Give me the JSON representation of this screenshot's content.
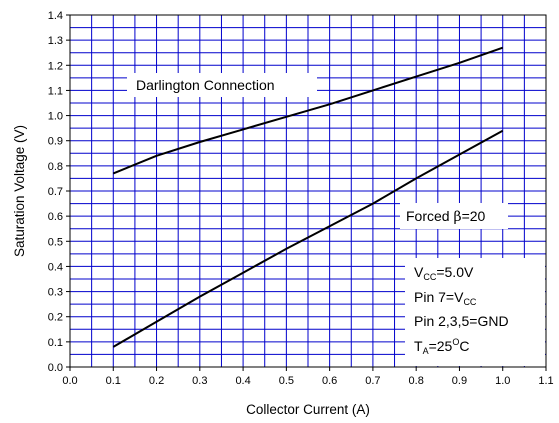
{
  "chart_data": {
    "type": "line",
    "xlabel": "Collector Current (A)",
    "ylabel": "Saturation Voltage (V)",
    "xlim": [
      0.0,
      1.1
    ],
    "ylim": [
      0.0,
      1.4
    ],
    "x_ticks": [
      "0.0",
      "0.1",
      "0.2",
      "0.3",
      "0.4",
      "0.5",
      "0.6",
      "0.7",
      "0.8",
      "0.9",
      "1.0",
      "1.1"
    ],
    "y_ticks": [
      "0.0",
      "0.1",
      "0.2",
      "0.3",
      "0.4",
      "0.5",
      "0.6",
      "0.7",
      "0.8",
      "0.9",
      "1.0",
      "1.1",
      "1.2",
      "1.3",
      "1.4"
    ],
    "grid": true,
    "series": [
      {
        "name": "Darlington Connection",
        "x": [
          0.1,
          0.2,
          0.3,
          0.4,
          0.5,
          0.6,
          0.7,
          0.8,
          0.9,
          1.0
        ],
        "y": [
          0.77,
          0.84,
          0.895,
          0.945,
          0.995,
          1.045,
          1.1,
          1.155,
          1.21,
          1.27
        ]
      },
      {
        "name": "Forced β=20",
        "x": [
          0.1,
          0.2,
          0.3,
          0.4,
          0.5,
          0.6,
          0.7,
          0.8,
          0.9,
          1.0
        ],
        "y": [
          0.08,
          0.18,
          0.28,
          0.375,
          0.47,
          0.56,
          0.65,
          0.75,
          0.845,
          0.94
        ]
      }
    ],
    "line_color": "#000000",
    "grid_color": "#0000cc"
  },
  "annotations": {
    "darlington": "Darlington Connection",
    "forced_prefix": "Forced ",
    "beta": "β",
    "forced_suffix": "=20",
    "vcc_v": "V",
    "vcc_sub": "CC",
    "vcc_val": "=5.0V",
    "pin7_pre": "Pin 7=V",
    "pin7_sub": "CC",
    "pins_gnd": "Pin 2,3,5=GND",
    "ta_t": "T",
    "ta_sub": "A",
    "ta_eq": "=25",
    "ta_sup": "O",
    "ta_unit": "C"
  }
}
